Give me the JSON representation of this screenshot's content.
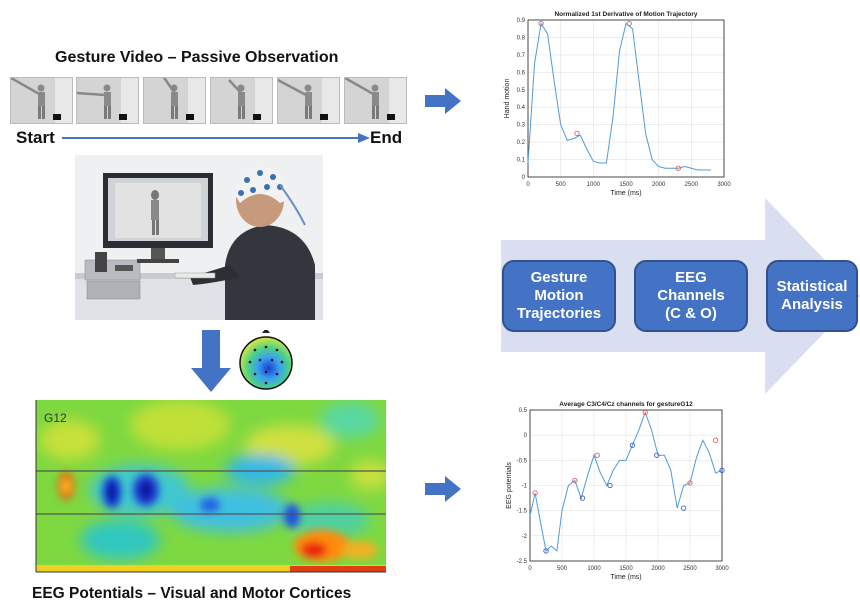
{
  "header": {
    "title": "Gesture Video – Passive Observation",
    "start": "Start",
    "end": "End"
  },
  "frames_count": 6,
  "pipeline": {
    "boxes": [
      "Gesture\nMotion\nTrajectories",
      "EEG\nChannels\n(C & O)",
      "Statistical\nAnalysis"
    ]
  },
  "eeg_map": {
    "label": "G12",
    "caption": "EEG Potentials – Visual and Motor Cortices"
  },
  "chart_data": [
    {
      "type": "line",
      "title": "Normalized 1st Derivative of Motion Trajectory",
      "xlabel": "Time (ms)",
      "ylabel": "Hand motion",
      "xlim": [
        0,
        3000
      ],
      "ylim": [
        0,
        0.9
      ],
      "xticks": [
        0,
        500,
        1000,
        1500,
        2000,
        2500,
        3000
      ],
      "yticks": [
        0,
        0.1,
        0.2,
        0.3,
        0.4,
        0.5,
        0.6,
        0.7,
        0.8,
        0.9
      ],
      "grid": true,
      "series": [
        {
          "color": "#4f9bd9",
          "x": [
            0,
            100,
            200,
            300,
            400,
            500,
            600,
            700,
            800,
            900,
            1000,
            1100,
            1200,
            1300,
            1400,
            1500,
            1600,
            1700,
            1800,
            1900,
            2000,
            2100,
            2200,
            2300,
            2400,
            2500,
            2600,
            2700,
            2800
          ],
          "y": [
            0.08,
            0.65,
            0.88,
            0.82,
            0.55,
            0.3,
            0.21,
            0.22,
            0.24,
            0.16,
            0.09,
            0.08,
            0.08,
            0.34,
            0.72,
            0.88,
            0.85,
            0.55,
            0.25,
            0.1,
            0.06,
            0.05,
            0.05,
            0.05,
            0.06,
            0.05,
            0.04,
            0.04,
            0.04
          ]
        }
      ],
      "markers": {
        "color": "#e06060",
        "x": [
          200,
          750,
          1550,
          2300
        ],
        "y": [
          0.88,
          0.25,
          0.88,
          0.05
        ]
      }
    },
    {
      "type": "line",
      "title": "Average C3/C4/Cz channels for gestureG12",
      "xlabel": "Time (ms)",
      "ylabel": "EEG potentials",
      "xlim": [
        0,
        3000
      ],
      "ylim": [
        -2.5,
        0.5
      ],
      "xticks": [
        0,
        500,
        1000,
        1500,
        2000,
        2500,
        3000
      ],
      "yticks": [
        -2.5,
        -2,
        -1.5,
        -1,
        -0.5,
        0,
        0.5
      ],
      "grid": true,
      "series": [
        {
          "color": "#4f9bd9",
          "x": [
            0,
            80,
            160,
            250,
            330,
            420,
            500,
            600,
            700,
            800,
            900,
            1000,
            1100,
            1200,
            1300,
            1400,
            1500,
            1600,
            1700,
            1800,
            1900,
            2000,
            2100,
            2200,
            2300,
            2400,
            2500,
            2600,
            2700,
            2800,
            2900,
            3000
          ],
          "y": [
            -1.6,
            -1.15,
            -1.7,
            -2.3,
            -2.2,
            -2.3,
            -1.5,
            -1.0,
            -0.9,
            -1.25,
            -0.8,
            -0.4,
            -0.75,
            -1.0,
            -0.7,
            -0.5,
            -0.5,
            -0.2,
            0.1,
            0.45,
            0.1,
            -0.4,
            -0.4,
            -0.7,
            -1.45,
            -1.0,
            -0.95,
            -0.45,
            -0.1,
            -0.35,
            -0.75,
            -0.7
          ]
        }
      ],
      "markers_red": {
        "color": "#e06060",
        "x": [
          80,
          700,
          1050,
          1800,
          2500,
          2900
        ],
        "y": [
          -1.15,
          -0.9,
          -0.4,
          0.45,
          -0.95,
          -0.1
        ]
      },
      "markers_blue": {
        "color": "#4060c0",
        "x": [
          250,
          820,
          1250,
          1600,
          1980,
          2400,
          3000
        ],
        "y": [
          -2.3,
          -1.25,
          -1.0,
          -0.2,
          -0.4,
          -1.45,
          -0.7
        ]
      }
    }
  ],
  "colors": {
    "accent": "#4472c4",
    "chevron": "#d9dff0",
    "timeline": "#4472c4"
  }
}
